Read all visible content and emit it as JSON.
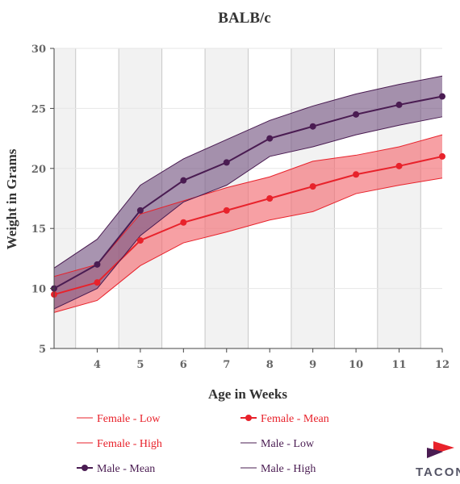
{
  "chart_data": {
    "type": "line",
    "title": "BALB/c",
    "xlabel": "Age in Weeks",
    "ylabel": "Weight in Grams",
    "x": [
      3,
      4,
      5,
      6,
      7,
      8,
      9,
      10,
      11,
      12
    ],
    "x_tick_labels": [
      "4",
      "5",
      "6",
      "7",
      "8",
      "9",
      "10",
      "11",
      "12"
    ],
    "y_ticks": [
      5,
      10,
      15,
      20,
      25,
      30
    ],
    "xlim": [
      3,
      12
    ],
    "ylim": [
      5,
      30
    ],
    "grid": "alternating vertical bands",
    "legend_position": "bottom",
    "series": [
      {
        "name": "Female - Low",
        "color": "#e8222b",
        "values": [
          8.0,
          9.0,
          11.9,
          13.8,
          14.7,
          15.7,
          16.4,
          17.9,
          18.6,
          19.2
        ]
      },
      {
        "name": "Female - Mean",
        "color": "#e8222b",
        "values": [
          9.5,
          10.5,
          14.0,
          15.5,
          16.5,
          17.5,
          18.5,
          19.5,
          20.2,
          21.0
        ]
      },
      {
        "name": "Female - High",
        "color": "#e8222b",
        "values": [
          11.0,
          12.0,
          16.2,
          17.3,
          18.4,
          19.3,
          20.6,
          21.1,
          21.8,
          22.8
        ]
      },
      {
        "name": "Male - Low",
        "color": "#4a1c52",
        "values": [
          8.3,
          10.0,
          14.4,
          17.2,
          18.6,
          21.0,
          21.8,
          22.8,
          23.6,
          24.3
        ]
      },
      {
        "name": "Male - Mean",
        "color": "#4a1c52",
        "values": [
          10.0,
          12.0,
          16.5,
          19.0,
          20.5,
          22.5,
          23.5,
          24.5,
          25.3,
          26.0
        ]
      },
      {
        "name": "Male - High",
        "color": "#4a1c52",
        "values": [
          11.7,
          14.1,
          18.6,
          20.8,
          22.4,
          24.0,
          25.2,
          26.2,
          27.0,
          27.7
        ]
      }
    ],
    "bands": [
      {
        "low": "Female - Low",
        "high": "Female - High",
        "fill": "#f26d73"
      },
      {
        "low": "Male - Low",
        "high": "Male - High",
        "fill": "#7a5a85"
      }
    ]
  },
  "logo": {
    "text": "TACONIC"
  }
}
